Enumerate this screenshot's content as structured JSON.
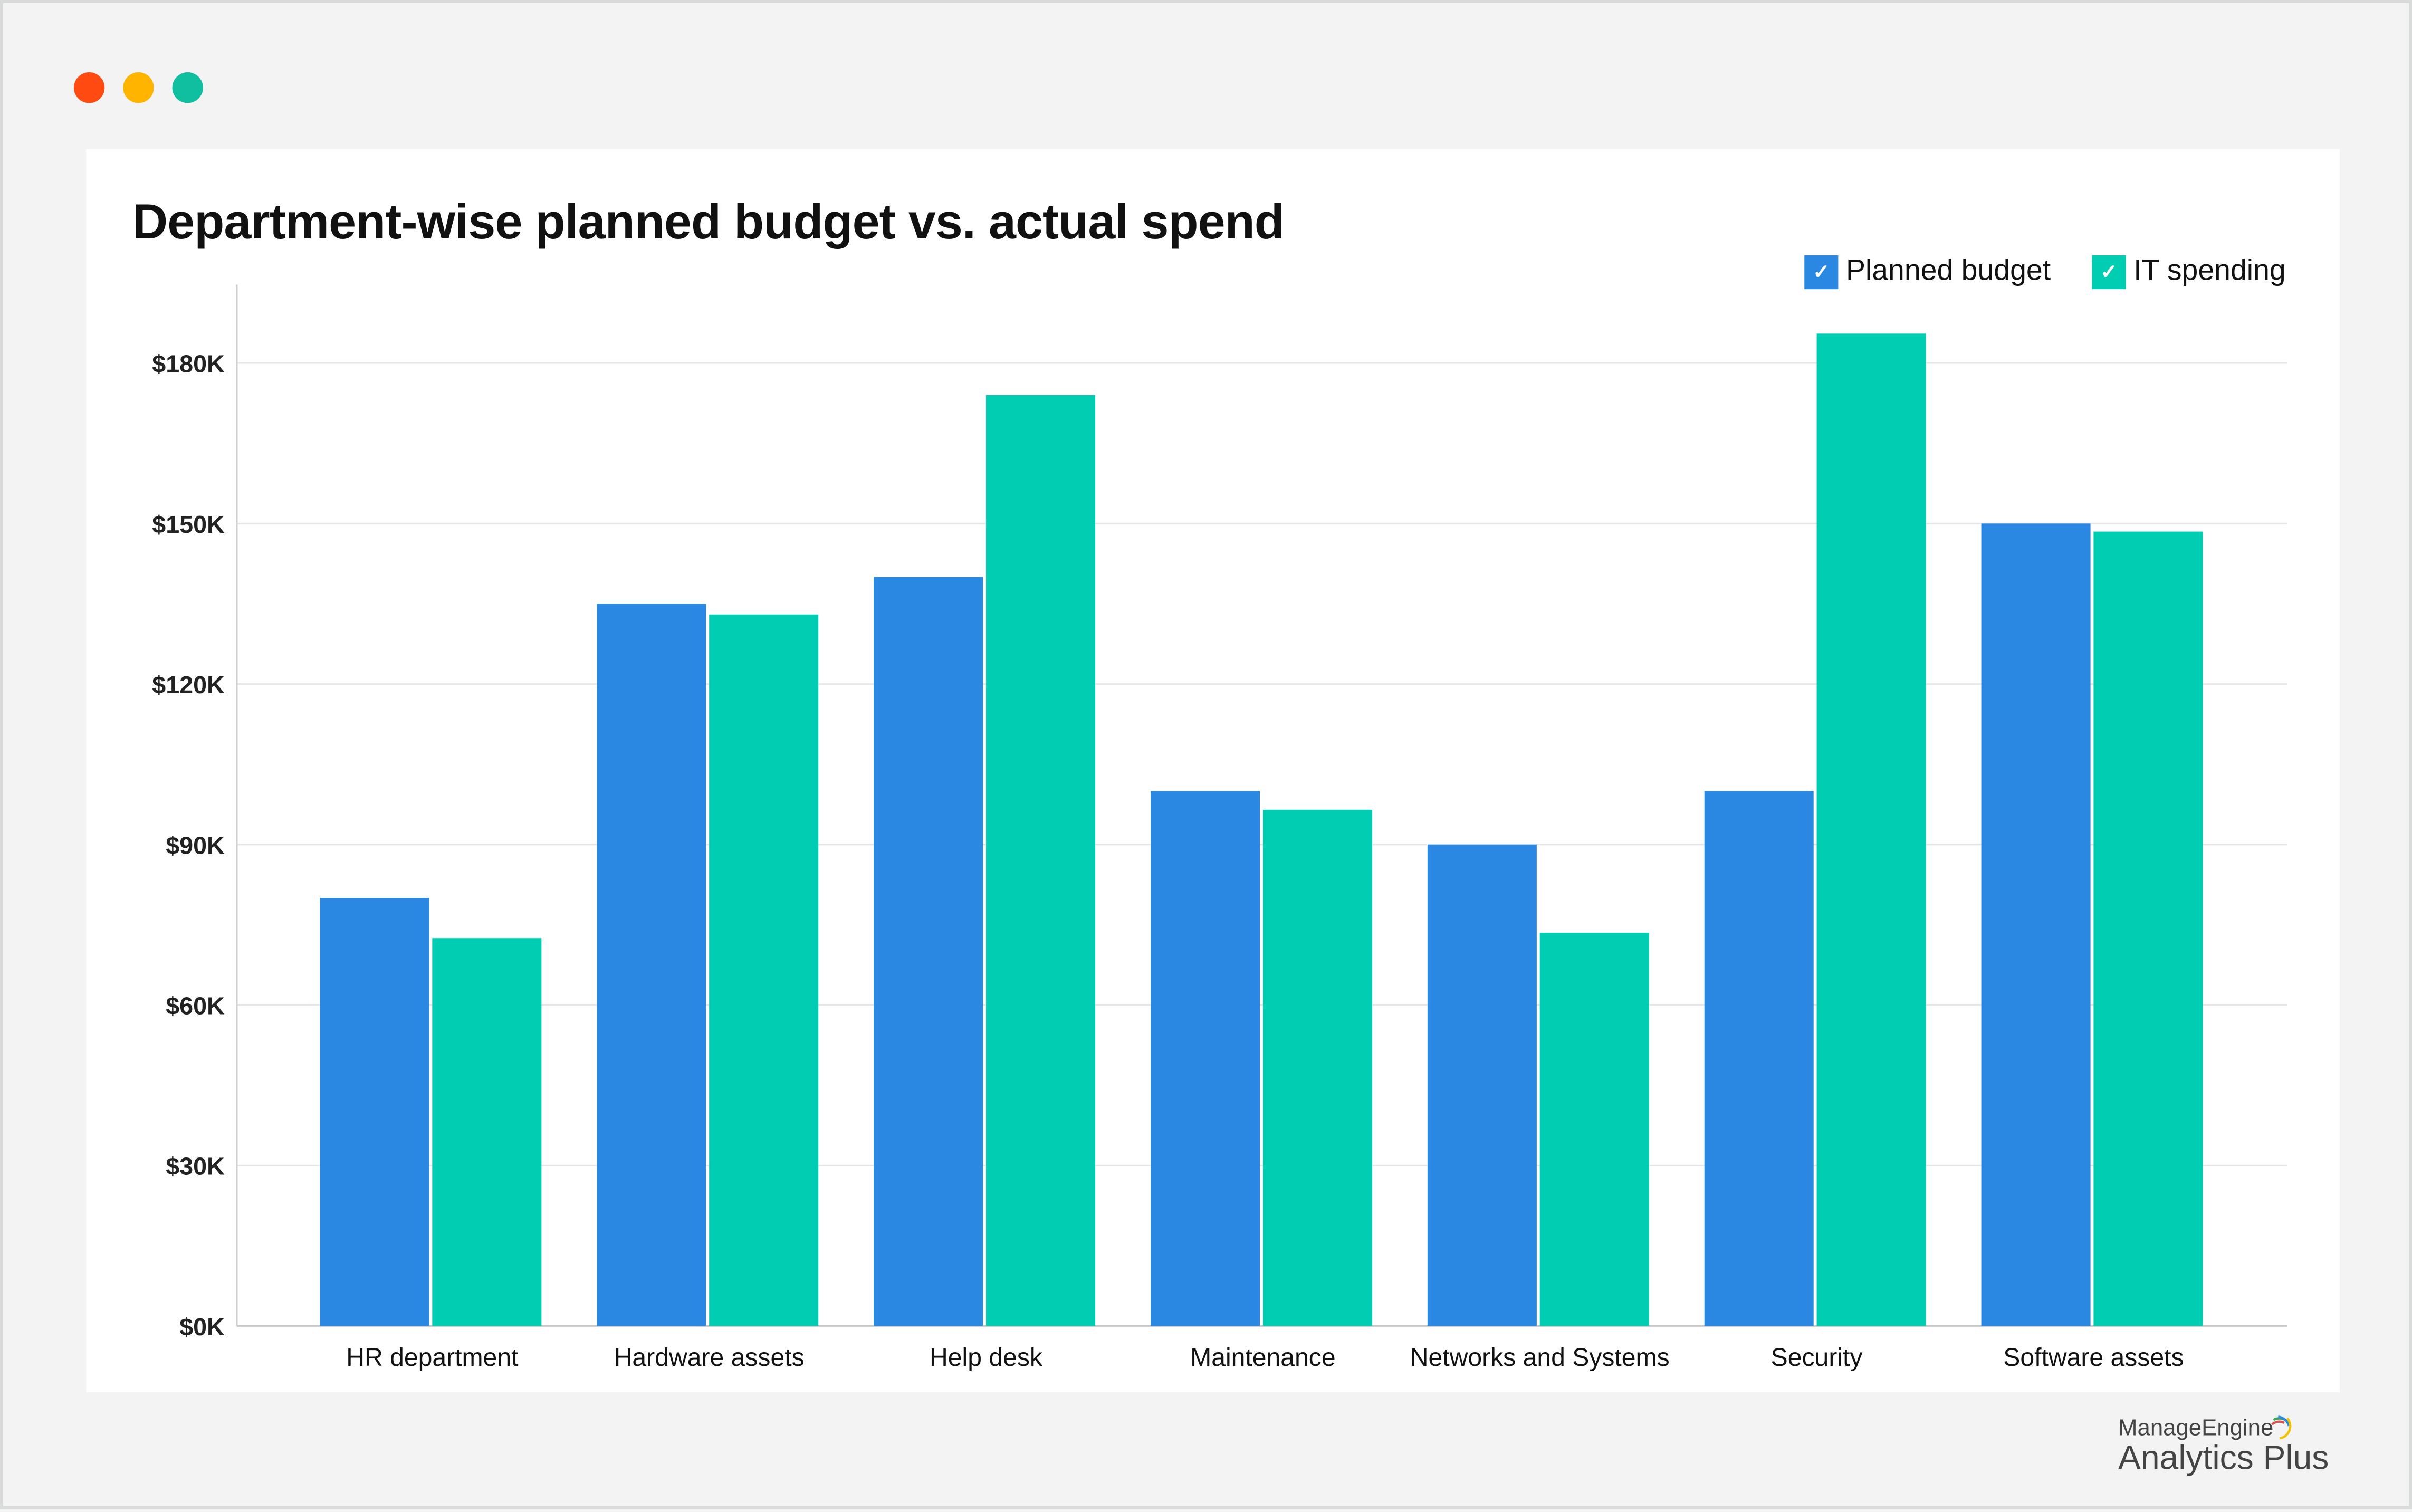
{
  "window": {
    "controls": [
      {
        "name": "close",
        "color": "#ff4a12"
      },
      {
        "name": "minimize",
        "color": "#ffb400"
      },
      {
        "name": "zoom",
        "color": "#0fbfa0"
      }
    ]
  },
  "chart_data": {
    "type": "bar",
    "title": "Department-wise planned budget vs. actual spend",
    "categories": [
      "HR department",
      "Hardware assets",
      "Help desk",
      "Maintenance",
      "Networks and Systems",
      "Security",
      "Software assets"
    ],
    "series": [
      {
        "name": "Planned budget",
        "color": "#2a88e2",
        "values": [
          80000,
          135000,
          140000,
          100000,
          90000,
          100000,
          150000
        ]
      },
      {
        "name": "IT spending",
        "color": "#00cdb1",
        "values": [
          72500,
          133000,
          174000,
          96500,
          73500,
          185500,
          148500
        ]
      }
    ],
    "ylim": [
      0,
      180000
    ],
    "yticks": [
      0,
      30000,
      60000,
      90000,
      120000,
      150000,
      180000
    ],
    "ytick_labels": [
      "$0K",
      "$30K",
      "$60K",
      "$90K",
      "$120K",
      "$150K",
      "$180K"
    ],
    "xlabel": "",
    "ylabel": "",
    "grid": true,
    "legend": "top-right",
    "legend_checked": [
      true,
      true
    ]
  },
  "branding": {
    "company": "ManageEngine",
    "product": "Analytics Plus"
  }
}
